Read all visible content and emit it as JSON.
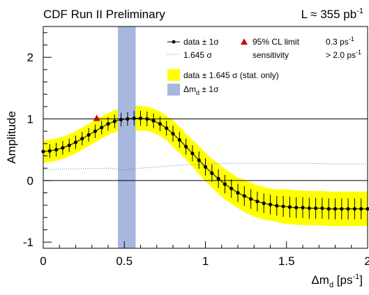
{
  "header": {
    "experiment": "CDF Run II Preliminary",
    "lumi_prefix": "L ≈ 355 pb",
    "lumi_exp": "-1"
  },
  "chart_data": {
    "type": "line",
    "xlabel_main": "Δm",
    "xlabel_sub": "d",
    "xlabel_unit": " [ps",
    "xlabel_exp": "-1",
    "xlabel_close": "]",
    "ylabel": "Amplitude",
    "xlim": [
      0,
      2
    ],
    "ylim": [
      -1.1,
      2.5
    ],
    "xticks": [
      0,
      0.5,
      1,
      1.5,
      2
    ],
    "xtick_labels": [
      "0",
      "0.5",
      "1",
      "1.5",
      "2"
    ],
    "yticks": [
      -1,
      0,
      1,
      2
    ],
    "ytick_labels": [
      "-1",
      "0",
      "1",
      "2"
    ],
    "reference_lines": [
      0,
      1
    ],
    "dm_band": [
      0.46,
      0.57
    ],
    "x": [
      0.0,
      0.04,
      0.08,
      0.12,
      0.16,
      0.2,
      0.24,
      0.28,
      0.32,
      0.36,
      0.4,
      0.44,
      0.48,
      0.52,
      0.56,
      0.6,
      0.64,
      0.68,
      0.72,
      0.76,
      0.8,
      0.84,
      0.88,
      0.92,
      0.96,
      1.0,
      1.04,
      1.08,
      1.12,
      1.16,
      1.2,
      1.24,
      1.28,
      1.32,
      1.36,
      1.4,
      1.44,
      1.48,
      1.52,
      1.56,
      1.6,
      1.64,
      1.68,
      1.72,
      1.76,
      1.8,
      1.84,
      1.88,
      1.92,
      1.96,
      2.0
    ],
    "series": [
      {
        "name": "data ± 1σ",
        "y": [
          0.47,
          0.48,
          0.5,
          0.53,
          0.57,
          0.62,
          0.68,
          0.74,
          0.8,
          0.86,
          0.92,
          0.96,
          0.99,
          1.0,
          1.01,
          1.01,
          1.0,
          0.97,
          0.92,
          0.85,
          0.76,
          0.66,
          0.55,
          0.44,
          0.33,
          0.22,
          0.12,
          0.03,
          -0.06,
          -0.13,
          -0.2,
          -0.25,
          -0.3,
          -0.34,
          -0.37,
          -0.39,
          -0.41,
          -0.42,
          -0.43,
          -0.44,
          -0.44,
          -0.45,
          -0.45,
          -0.45,
          -0.46,
          -0.46,
          -0.46,
          -0.46,
          -0.46,
          -0.46,
          -0.46
        ],
        "err": [
          0.11,
          0.11,
          0.11,
          0.11,
          0.11,
          0.11,
          0.11,
          0.11,
          0.11,
          0.11,
          0.11,
          0.11,
          0.11,
          0.11,
          0.12,
          0.12,
          0.12,
          0.12,
          0.12,
          0.12,
          0.13,
          0.13,
          0.13,
          0.13,
          0.14,
          0.14,
          0.14,
          0.15,
          0.15,
          0.15,
          0.15,
          0.16,
          0.16,
          0.16,
          0.16,
          0.16,
          0.16,
          0.17,
          0.17,
          0.17,
          0.17,
          0.17,
          0.17,
          0.17,
          0.17,
          0.17,
          0.17,
          0.17,
          0.17,
          0.17,
          0.17
        ]
      },
      {
        "name": "1.645 σ",
        "x": [
          0.0,
          0.2,
          0.4,
          0.5,
          0.6,
          0.8,
          1.0,
          1.2,
          1.4,
          1.6,
          1.8,
          2.0
        ],
        "y": [
          0.18,
          0.19,
          0.2,
          0.17,
          0.2,
          0.24,
          0.27,
          0.28,
          0.28,
          0.28,
          0.27,
          0.27
        ]
      }
    ],
    "limit_marker": {
      "x": 0.33,
      "y": 1.0
    },
    "legend": {
      "data": "data ± 1σ",
      "limit": "95% CL limit",
      "limit_value": "0.3 ps",
      "limit_value_exp": "-1",
      "sens": "1.645 σ",
      "sens_label": "sensitivity",
      "sens_value": "> 2.0 ps",
      "sens_value_exp": "-1",
      "band": "data ± 1.645 σ (stat. only)",
      "dm_prefix": "Δm",
      "dm_sub": "d",
      "dm_suffix": " ± 1σ"
    },
    "colors": {
      "yellow_band": "#ffff00",
      "dm_band": "#a7b7de",
      "sensitivity": "#5b7fc0",
      "limit_marker": "#cc0000",
      "data": "#000000"
    }
  }
}
